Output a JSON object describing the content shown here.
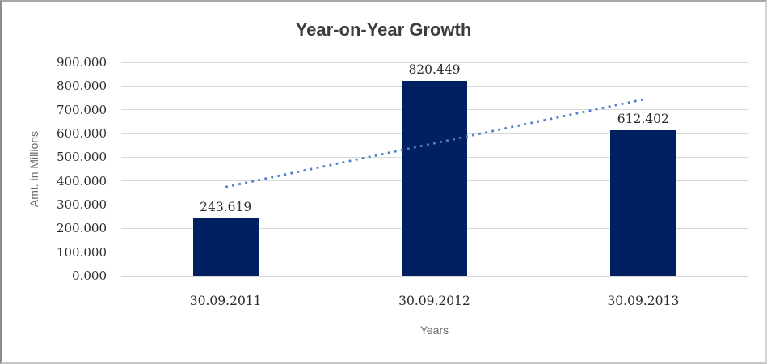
{
  "chart_data": {
    "type": "bar",
    "title": "Year-on-Year Growth",
    "xlabel": "Years",
    "ylabel": "Amt. in Millions",
    "categories": [
      "30.09.2011",
      "30.09.2012",
      "30.09.2013"
    ],
    "values": [
      243.619,
      820.449,
      612.402
    ],
    "data_labels": [
      "243.619",
      "820.449",
      "612.402"
    ],
    "ylim": [
      0,
      900
    ],
    "ytick_step": 100,
    "ytick_labels": [
      "0.000",
      "100.000",
      "200.000",
      "300.000",
      "400.000",
      "500.000",
      "600.000",
      "700.000",
      "800.000",
      "900.000"
    ],
    "grid": true,
    "legend_position": "none",
    "bar_color": "#002060",
    "gridline_color": "#d9d9d9",
    "trendline": {
      "type": "linear",
      "style": "dotted",
      "color": "#4a7fd0"
    }
  }
}
